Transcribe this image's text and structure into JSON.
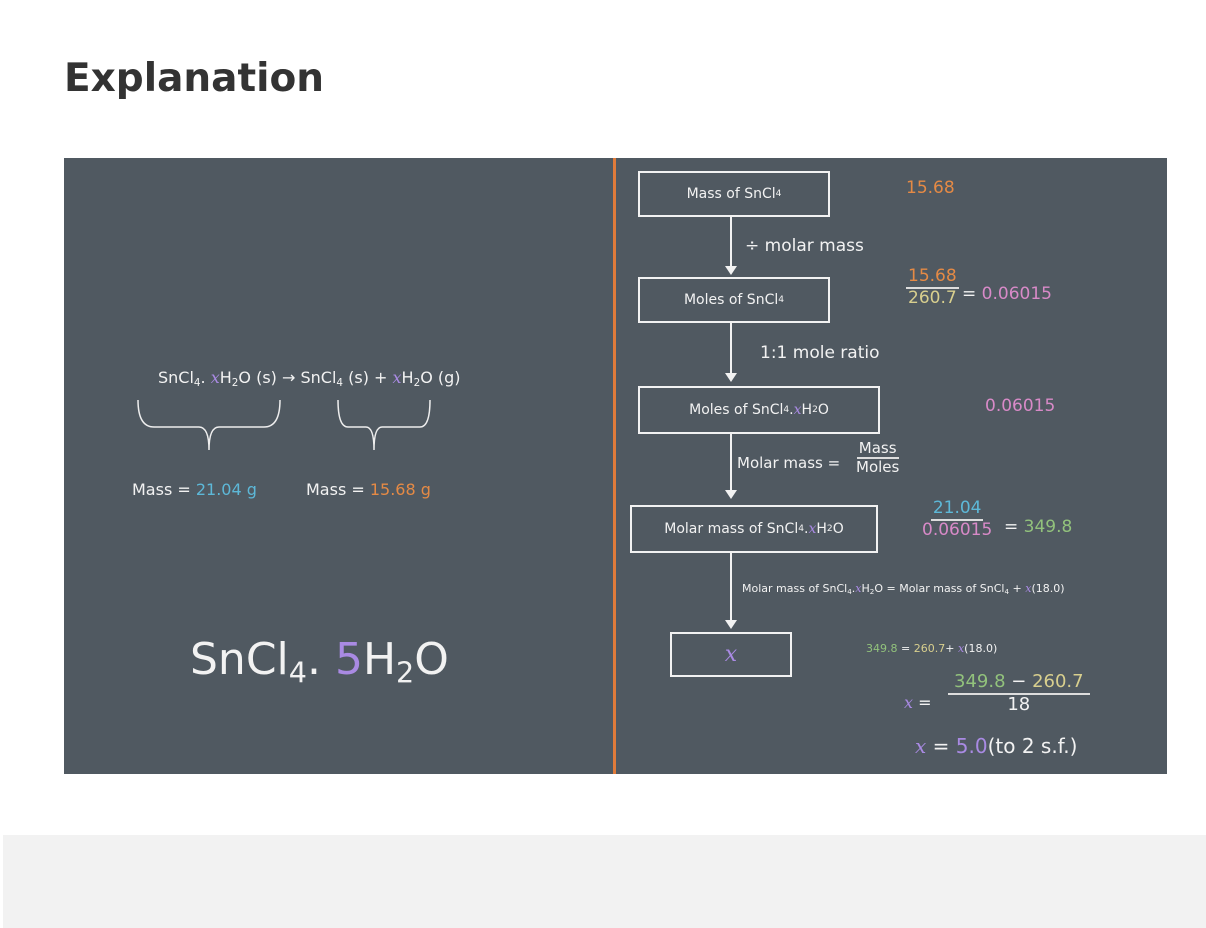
{
  "title": "Explanation",
  "colors": {
    "panel_bg": "#505961",
    "divider": "#e07b3a",
    "orange": "#e58a45",
    "pink": "#d88ac8",
    "blue": "#5db8d8",
    "green": "#92c27c",
    "yellow": "#d8cf8e",
    "purple": "#a98ae3"
  },
  "left": {
    "eq_reactant": "SnCl",
    "eq_sub4": "4",
    "eq_dot": ". ",
    "x": "x",
    "eq_h": "H",
    "eq_sub2": "2",
    "eq_o_s": "O (s) → SnCl",
    "eq_s": " (s) + ",
    "eq_o_g": "O (g)",
    "mass_label": "Mass = ",
    "mass1": "21.04 g",
    "mass2": "15.68 g",
    "answer_sn": "SnCl",
    "answer_4": "4",
    "answer_dot": ". ",
    "answer_5": "5",
    "answer_h": "H",
    "answer_2": "2",
    "answer_o": "O"
  },
  "flow": {
    "box1": "Mass of SnCl",
    "box2": "Moles of SnCl",
    "box3a": "Moles of SnCl",
    "box3b": " . ",
    "box4a": "Molar mass of SnCl",
    "box4b": ". ",
    "h": "H",
    "o": "O",
    "s4": "4",
    "s2": "2",
    "x": "x",
    "step1": "÷ molar mass",
    "step2": "1:1 mole ratio",
    "step3": "Molar mass = ",
    "step3_num": "Mass",
    "step3_den": "Moles",
    "step4a": "Molar mass of SnCl",
    "step4b": ".",
    "step4c": "O = Molar mass of SnCl",
    "step4d": " + ",
    "step4e": "(18.0)"
  },
  "calc": {
    "mass": "15.68",
    "moles_num": "15.68",
    "moles_den": "260.7",
    "eq": "= ",
    "moles": "0.06015",
    "moles2": "0.06015",
    "mm_num": "21.04",
    "mm_den": "0.06015",
    "mm": "349.8",
    "line1_a": "349.8",
    "line1_b": " = ",
    "line1_c": "260.7",
    "line1_d": "+ ",
    "line1_e": "(18.0)",
    "x_eq": " = ",
    "frac_a": "349.8",
    "frac_minus": " − ",
    "frac_b": "260.7",
    "frac_den": "18",
    "result": "5.0",
    "result_note": "(to 2 s.f.)"
  }
}
